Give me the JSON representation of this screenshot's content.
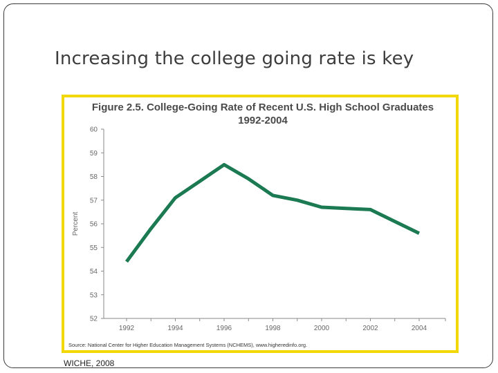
{
  "slide": {
    "title": "Increasing the college going rate is key",
    "credit": "WICHE, 2008"
  },
  "chart_data": {
    "type": "line",
    "title": "Figure 2.5.  College-Going Rate of Recent U.S. High School Graduates",
    "subtitle": "1992-2004",
    "xlabel": "",
    "ylabel": "Percent",
    "x": [
      1992,
      1993,
      1994,
      1995,
      1996,
      1997,
      1998,
      1999,
      2000,
      2001,
      2002,
      2003,
      2004
    ],
    "x_ticks": [
      "1992",
      "1994",
      "1996",
      "1998",
      "2000",
      "2002",
      "2004"
    ],
    "y_ticks": [
      "60",
      "59",
      "58",
      "57",
      "56",
      "55",
      "54",
      "53",
      "52"
    ],
    "xlim": [
      1992,
      2004
    ],
    "ylim": [
      52,
      60
    ],
    "series": [
      {
        "values": [
          54.4,
          55.8,
          57.1,
          57.8,
          58.5,
          57.9,
          57.2,
          57.0,
          56.7,
          56.65,
          56.6,
          56.1,
          55.6
        ],
        "color": "#1b7a52"
      }
    ],
    "grid": false,
    "source": "Source: National Center for Higher Education Management Systems (NCHEMS), www.higheredinfo.org."
  }
}
